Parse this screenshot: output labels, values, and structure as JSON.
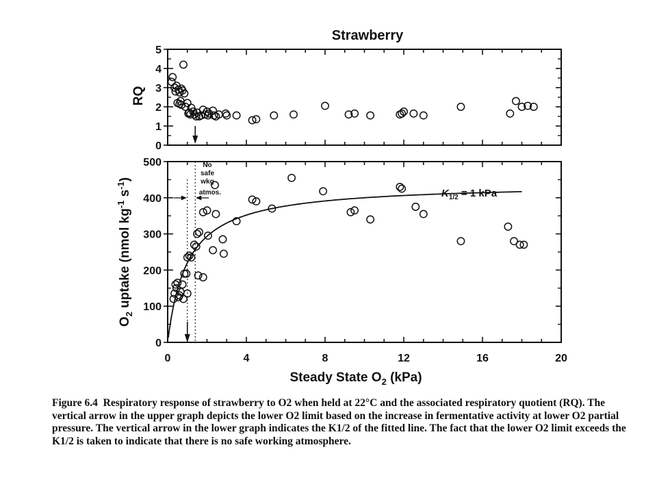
{
  "figure": {
    "title": "Strawberry",
    "panels": [
      {
        "id": "rq",
        "ylabel": "RQ",
        "ylim": [
          0,
          5
        ],
        "yticks": [
          "0",
          "1",
          "2",
          "3",
          "4",
          "5"
        ]
      },
      {
        "id": "uptake",
        "ylabel_parts": [
          "O",
          "2",
          " uptake (nmol kg",
          "-1",
          " s",
          "-1",
          ")"
        ],
        "ylim": [
          0,
          500
        ],
        "yticks": [
          "0",
          "100",
          "200",
          "300",
          "400",
          "500"
        ],
        "annotation_no_safe": [
          "No",
          "safe",
          "wkg",
          "atmos."
        ],
        "annotation_k": {
          "k": "K",
          "sub": "1/2",
          "rest": " = 1 kPa"
        }
      }
    ],
    "xlabel_parts": [
      "Steady State O",
      "2",
      " (kPa)"
    ],
    "xlim": [
      0,
      20
    ],
    "xticks": [
      "0",
      "4",
      "8",
      "12",
      "16",
      "20"
    ]
  },
  "caption": {
    "label": "Figure 6.4",
    "text": "Respiratory response of strawberry to O2 when held at 22°C and the associated respiratory quotient (RQ). The vertical arrow in the upper graph depicts the lower O2 limit based on the increase in fermentative activity at lower O2 partial pressure. The vertical arrow in the lower graph indicates the K1/2 of the fitted line. The fact that the lower O2 limit exceeds the K1/2 is taken to indicate that there is no safe working atmosphere."
  },
  "chart_data": [
    {
      "type": "scatter",
      "title": "Strawberry",
      "xlabel": "Steady State O2 (kPa)",
      "ylabel": "RQ",
      "xlim": [
        0,
        20
      ],
      "ylim": [
        0,
        5
      ],
      "grid": false,
      "lower_o2_limit_arrow_x": 1.4,
      "points": [
        [
          0.2,
          3.3
        ],
        [
          0.25,
          3.55
        ],
        [
          0.35,
          3.0
        ],
        [
          0.45,
          3.1
        ],
        [
          0.4,
          2.8
        ],
        [
          0.55,
          2.9
        ],
        [
          0.6,
          2.75
        ],
        [
          0.7,
          2.95
        ],
        [
          0.8,
          4.2
        ],
        [
          0.75,
          2.85
        ],
        [
          0.85,
          2.7
        ],
        [
          0.5,
          2.2
        ],
        [
          0.6,
          2.15
        ],
        [
          0.7,
          2.1
        ],
        [
          0.9,
          2.0
        ],
        [
          1.0,
          2.2
        ],
        [
          1.05,
          1.65
        ],
        [
          1.15,
          1.6
        ],
        [
          1.2,
          1.95
        ],
        [
          1.3,
          1.75
        ],
        [
          1.35,
          1.6
        ],
        [
          1.5,
          1.7
        ],
        [
          1.6,
          1.5
        ],
        [
          1.7,
          1.55
        ],
        [
          1.8,
          1.85
        ],
        [
          1.9,
          1.6
        ],
        [
          2.0,
          1.75
        ],
        [
          2.1,
          1.65
        ],
        [
          2.3,
          1.8
        ],
        [
          2.35,
          1.55
        ],
        [
          2.45,
          1.5
        ],
        [
          2.6,
          1.6
        ],
        [
          2.95,
          1.65
        ],
        [
          3.0,
          1.55
        ],
        [
          3.5,
          1.55
        ],
        [
          4.3,
          1.3
        ],
        [
          4.5,
          1.35
        ],
        [
          5.4,
          1.55
        ],
        [
          6.4,
          1.6
        ],
        [
          8.0,
          2.05
        ],
        [
          9.2,
          1.6
        ],
        [
          9.5,
          1.65
        ],
        [
          10.3,
          1.55
        ],
        [
          11.9,
          1.65
        ],
        [
          12.0,
          1.75
        ],
        [
          12.5,
          1.65
        ],
        [
          13.0,
          1.55
        ],
        [
          14.9,
          2.0
        ],
        [
          17.4,
          1.65
        ],
        [
          17.7,
          2.3
        ],
        [
          18.0,
          2.0
        ],
        [
          18.6,
          2.0
        ],
        [
          18.3,
          2.05
        ],
        [
          11.8,
          1.6
        ],
        [
          0.65,
          2.3
        ],
        [
          1.1,
          1.7
        ],
        [
          2.05,
          1.55
        ],
        [
          1.45,
          1.5
        ]
      ]
    },
    {
      "type": "scatter",
      "xlabel": "Steady State O2 (kPa)",
      "ylabel": "O2 uptake (nmol kg-1 s-1)",
      "xlim": [
        0,
        20
      ],
      "ylim": [
        0,
        500
      ],
      "grid": false,
      "k_half_arrow_x": 1.0,
      "fitted_line": {
        "model": "michaelis-menten",
        "k_half": 1.0,
        "vmax": 440,
        "x_range": [
          0.03,
          18.0
        ],
        "label": "K1/2 = 1 kPa"
      },
      "points": [
        [
          0.3,
          120
        ],
        [
          0.35,
          135
        ],
        [
          0.4,
          160
        ],
        [
          0.5,
          165
        ],
        [
          0.55,
          125
        ],
        [
          0.65,
          140
        ],
        [
          0.75,
          160
        ],
        [
          0.8,
          120
        ],
        [
          0.85,
          190
        ],
        [
          0.95,
          190
        ],
        [
          1.0,
          135
        ],
        [
          1.0,
          235
        ],
        [
          1.1,
          240
        ],
        [
          1.2,
          235
        ],
        [
          1.35,
          270
        ],
        [
          1.45,
          265
        ],
        [
          1.5,
          300
        ],
        [
          1.6,
          305
        ],
        [
          1.55,
          185
        ],
        [
          1.8,
          180
        ],
        [
          1.8,
          360
        ],
        [
          2.0,
          365
        ],
        [
          2.05,
          295
        ],
        [
          2.3,
          255
        ],
        [
          2.4,
          435
        ],
        [
          2.45,
          355
        ],
        [
          2.8,
          285
        ],
        [
          2.85,
          245
        ],
        [
          3.5,
          335
        ],
        [
          4.3,
          395
        ],
        [
          4.5,
          390
        ],
        [
          5.3,
          370
        ],
        [
          6.3,
          455
        ],
        [
          7.9,
          418
        ],
        [
          9.3,
          360
        ],
        [
          9.5,
          365
        ],
        [
          10.3,
          340
        ],
        [
          11.8,
          430
        ],
        [
          11.9,
          425
        ],
        [
          12.6,
          375
        ],
        [
          13.0,
          355
        ],
        [
          14.9,
          280
        ],
        [
          17.3,
          320
        ],
        [
          17.6,
          280
        ],
        [
          17.9,
          270
        ],
        [
          18.1,
          270
        ],
        [
          0.45,
          150
        ],
        [
          0.6,
          130
        ]
      ]
    }
  ]
}
